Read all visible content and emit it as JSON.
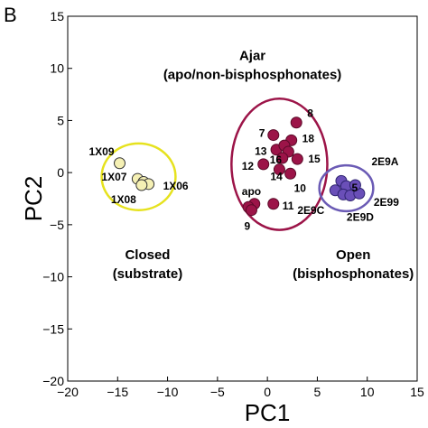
{
  "panel_label": "B",
  "chart_data": {
    "type": "scatter",
    "title": "",
    "xlabel": "PC1",
    "ylabel": "PC2",
    "xlim": [
      -20,
      15
    ],
    "ylim": [
      -20,
      15
    ],
    "x_ticks": [
      -20,
      -15,
      -10,
      -5,
      0,
      5,
      10,
      15
    ],
    "y_ticks": [
      -20,
      -15,
      -10,
      -5,
      0,
      5,
      10,
      15
    ],
    "x_tick_labels": [
      "−20",
      "−15",
      "−10",
      "−5",
      "0",
      "5",
      "10",
      "15"
    ],
    "y_tick_labels": [
      "−20",
      "−15",
      "−10",
      "−5",
      "0",
      "5",
      "10",
      "15"
    ],
    "grid": false,
    "series": [
      {
        "color": "#f5f0b4",
        "edge_color": "#333333",
        "points": [
          {
            "label": "1X09",
            "x": -14.8,
            "y": 0.9
          },
          {
            "label": "1X07",
            "x": -13.0,
            "y": -0.6
          },
          {
            "label": "",
            "x": -12.4,
            "y": -0.9
          },
          {
            "label": "1X06",
            "x": -11.9,
            "y": -1.1
          },
          {
            "label": "1X08",
            "x": -12.6,
            "y": -1.2
          }
        ]
      },
      {
        "color": "#9c1448",
        "edge_color": "#5a0a28",
        "points": [
          {
            "label": "7",
            "x": 0.6,
            "y": 3.6
          },
          {
            "label": "8",
            "x": 2.9,
            "y": 4.8
          },
          {
            "label": "13",
            "x": 0.9,
            "y": 2.2
          },
          {
            "label": "18",
            "x": 2.4,
            "y": 3.1
          },
          {
            "label": "",
            "x": 1.7,
            "y": 2.6
          },
          {
            "label": "",
            "x": 2.1,
            "y": 2.0
          },
          {
            "label": "16",
            "x": 1.5,
            "y": 1.4
          },
          {
            "label": "15",
            "x": 3.0,
            "y": 1.3
          },
          {
            "label": "12",
            "x": -0.4,
            "y": 0.8
          },
          {
            "label": "14",
            "x": 1.2,
            "y": 0.3
          },
          {
            "label": "10",
            "x": 2.3,
            "y": -0.1
          },
          {
            "label": "apo",
            "x": -1.3,
            "y": -3.0
          },
          {
            "label": "",
            "x": -1.9,
            "y": -3.3
          },
          {
            "label": "9",
            "x": -1.6,
            "y": -3.6
          },
          {
            "label": "11",
            "x": 0.6,
            "y": -3.0
          }
        ]
      },
      {
        "color": "#6a4fb8",
        "edge_color": "#2e2370",
        "points": [
          {
            "label": "",
            "x": 7.4,
            "y": -0.8
          },
          {
            "label": "5",
            "x": 7.9,
            "y": -1.3
          },
          {
            "label": "2E9C",
            "x": 6.8,
            "y": -1.7
          },
          {
            "label": "",
            "x": 7.6,
            "y": -2.1
          },
          {
            "label": "2E9D",
            "x": 8.3,
            "y": -2.2
          },
          {
            "label": "2E99",
            "x": 9.2,
            "y": -2.0
          },
          {
            "label": "2E9A",
            "x": 8.8,
            "y": -1.2
          }
        ]
      }
    ],
    "ellipses": [
      {
        "cx": -12.9,
        "cy": -0.4,
        "rx": 3.7,
        "ry": 3.2,
        "color": "#e6e21e"
      },
      {
        "cx": 1.2,
        "cy": 0.8,
        "rx": 4.8,
        "ry": 6.3,
        "color": "#9c1448"
      },
      {
        "cx": 7.9,
        "cy": -1.5,
        "rx": 2.7,
        "ry": 2.2,
        "color": "#6b5bb5"
      }
    ],
    "group_labels": [
      {
        "lines": [
          "Ajar",
          "(apo/non-bisphosphonates)"
        ],
        "x": -1.5,
        "y": 10.8
      },
      {
        "lines": [
          "Closed",
          "(substrate)"
        ],
        "x": -12.0,
        "y": -8.3
      },
      {
        "lines": [
          "Open",
          "(bisphosphonates)"
        ],
        "x": 8.6,
        "y": -8.3
      }
    ]
  }
}
